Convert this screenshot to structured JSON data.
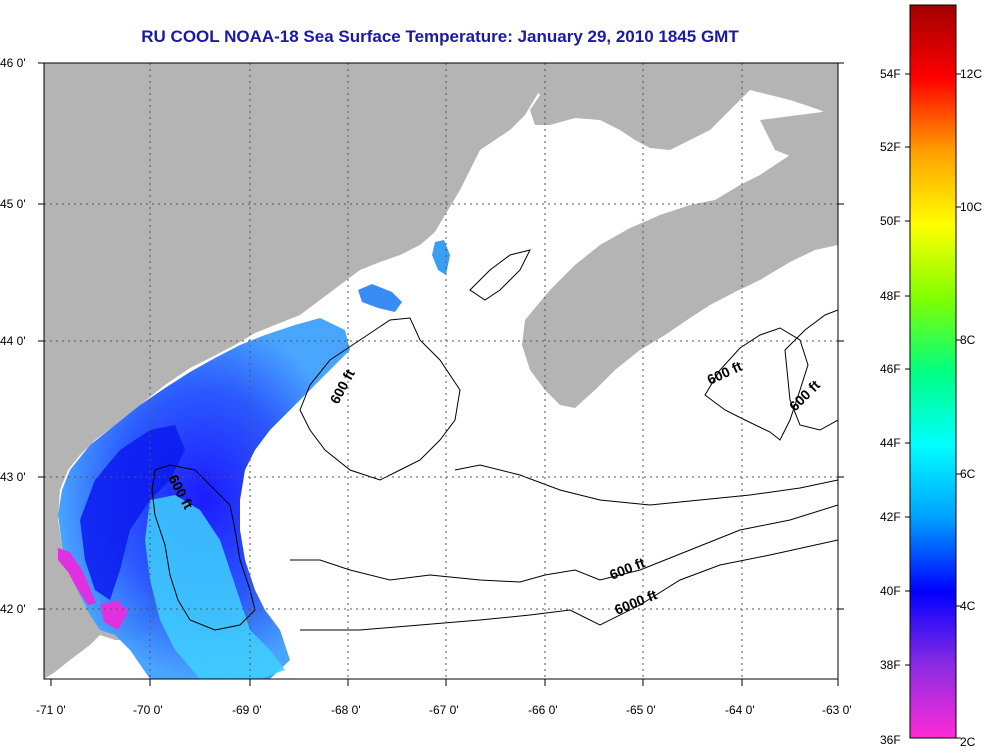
{
  "title": "RU COOL  NOAA-18  Sea Surface Temperature:  January 29, 2010 1845 GMT",
  "colors": {
    "title": "#1a1aa6",
    "land": "#b4b4b4",
    "water_nodata": "#ffffff",
    "contour": "#000000",
    "grid": "#555555"
  },
  "map": {
    "lat_labels": [
      "46 0'",
      "45 0'",
      "44 0'",
      "43 0'",
      "42 0'"
    ],
    "lon_labels": [
      "-71 0'",
      "-70 0'",
      "-69 0'",
      "-68 0'",
      "-67 0'",
      "-66 0'",
      "-65 0'",
      "-64 0'",
      "-63 0'"
    ],
    "contour_labels": [
      {
        "text": "600 ft"
      },
      {
        "text": "600 ft"
      },
      {
        "text": "600 ft"
      },
      {
        "text": "600 ft"
      },
      {
        "text": "600 ft"
      },
      {
        "text": "6000 ft"
      }
    ]
  },
  "colorbar": {
    "fahrenheit_labels": [
      "54F",
      "52F",
      "50F",
      "48F",
      "46F",
      "44F",
      "42F",
      "40F",
      "38F",
      "36F"
    ],
    "celsius_labels": [
      "12C",
      "10C",
      "8C",
      "6C",
      "4C",
      "2C"
    ],
    "gradient_stops": [
      "#ff2bd6",
      "#8a2be2",
      "#0000ff",
      "#00a0ff",
      "#00ffff",
      "#00ff80",
      "#80ff00",
      "#ffff00",
      "#ffa000",
      "#ff0000",
      "#a00000"
    ]
  }
}
